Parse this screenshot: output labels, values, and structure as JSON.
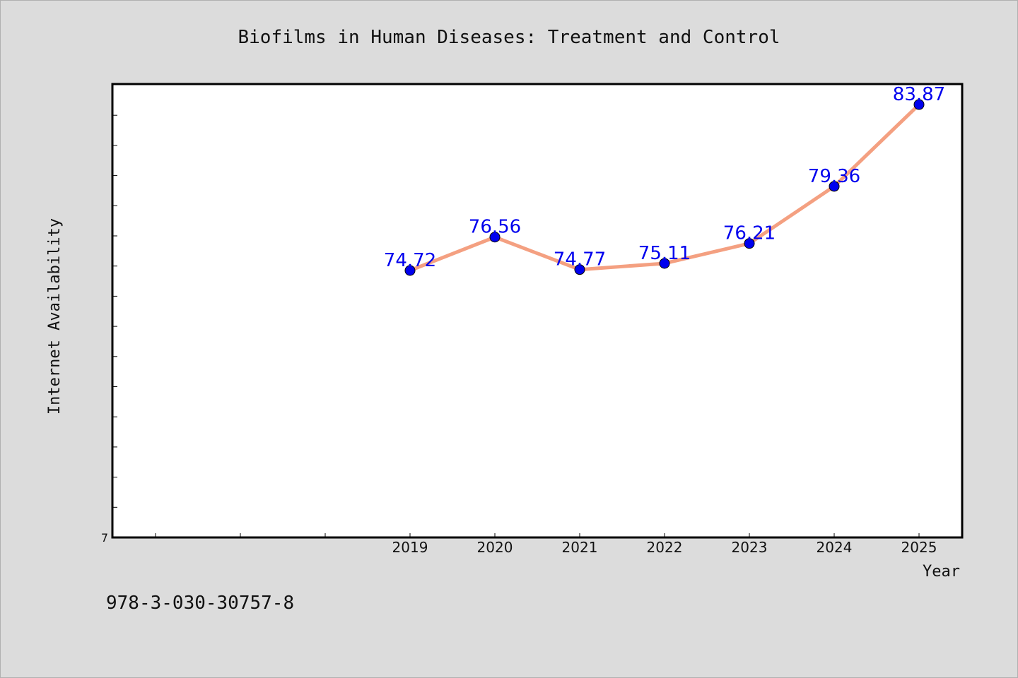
{
  "chart_data": {
    "type": "line",
    "title": "Biofilms in Human Diseases: Treatment and Control",
    "xlabel": "Year",
    "ylabel": "Internet Availability",
    "categories": [
      "2019",
      "2020",
      "2021",
      "2022",
      "2023",
      "2024",
      "2025"
    ],
    "values": [
      74.72,
      76.56,
      74.77,
      75.11,
      76.21,
      79.36,
      83.87
    ],
    "value_labels": [
      "74.72",
      "76.56",
      "74.77",
      "75.11",
      "76.21",
      "79.36",
      "83.87"
    ],
    "y_tick_label": "7",
    "ylim": [
      60,
      85
    ],
    "line_color": "#f4a081",
    "marker_color": "#0000ee",
    "label_color": "#0000ee",
    "grid": false,
    "legend": "none"
  },
  "footer": {
    "isbn": "978-3-030-30757-8"
  }
}
